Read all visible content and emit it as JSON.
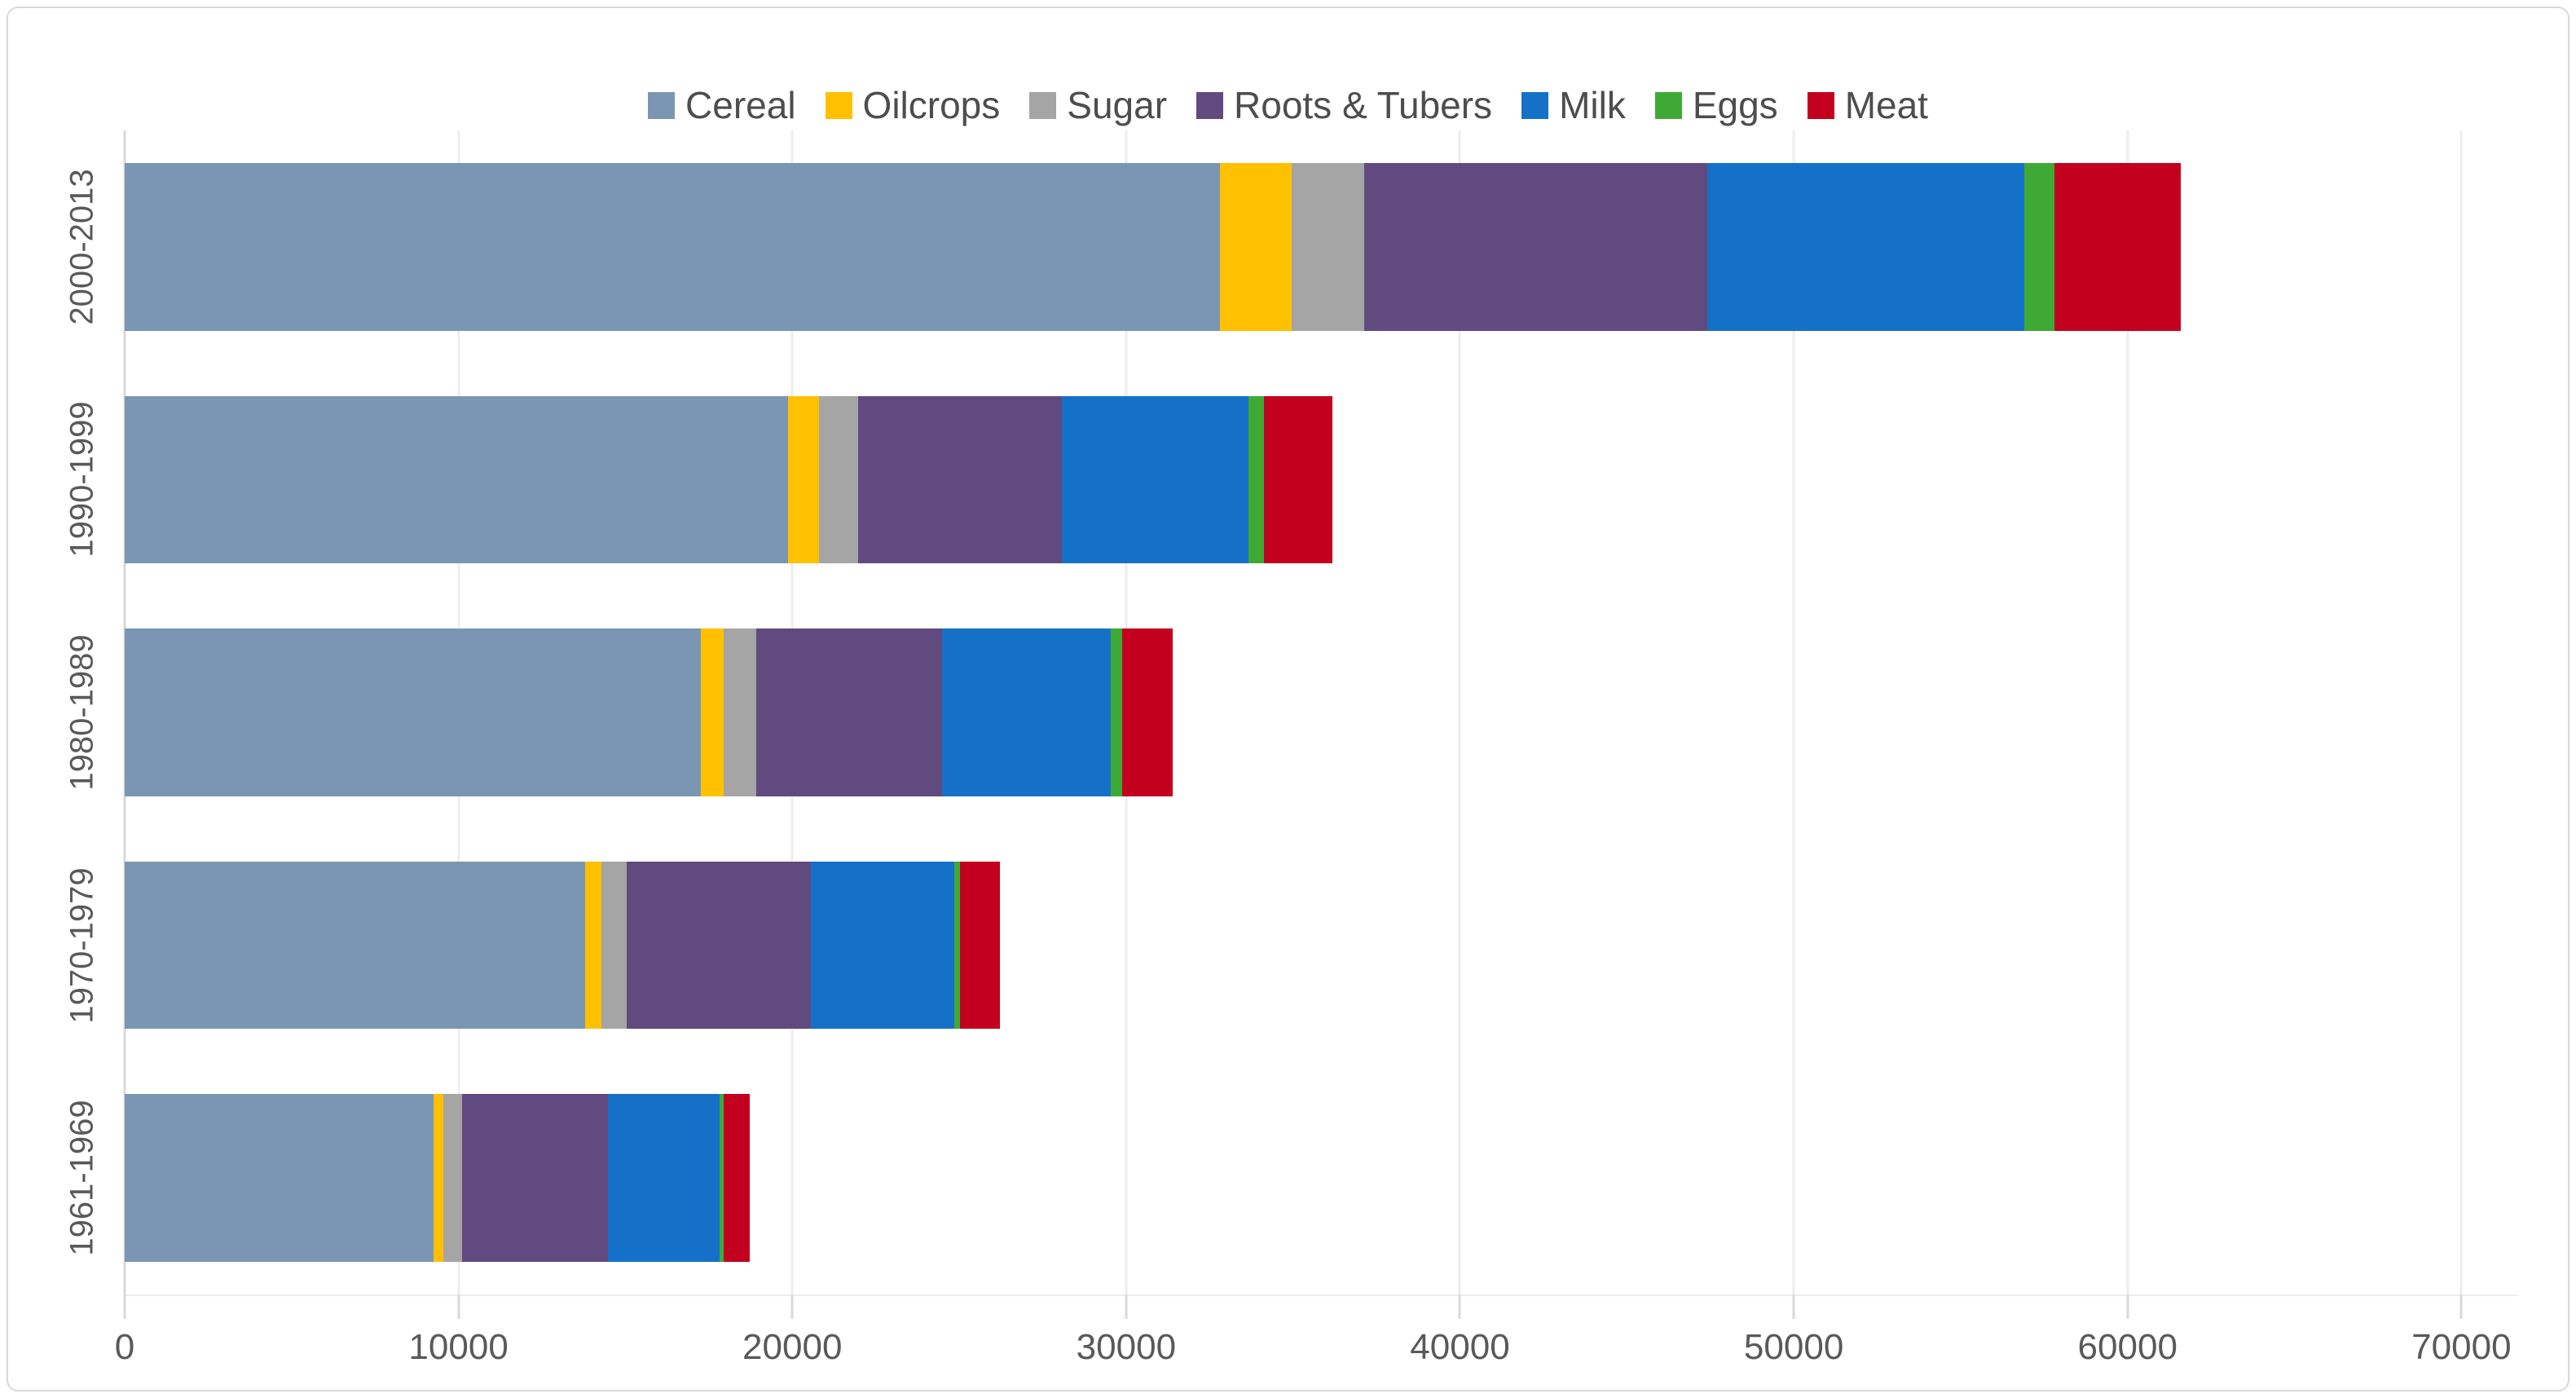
{
  "chart_data": {
    "type": "bar",
    "subtype": "horizontal-stacked",
    "title": "",
    "xlabel": "",
    "ylabel": "",
    "categories": [
      "2000-2013",
      "1990-1999",
      "1980-1989",
      "1970-1979",
      "1961-1969"
    ],
    "series": [
      {
        "name": "Cereal",
        "color": "#7A96B3",
        "values": [
          32800,
          19870,
          17270,
          13790,
          9250
        ]
      },
      {
        "name": "Oilcrops",
        "color": "#FFC000",
        "values": [
          2150,
          940,
          670,
          490,
          300
        ]
      },
      {
        "name": "Sugar",
        "color": "#A5A5A5",
        "values": [
          2180,
          1160,
          970,
          770,
          550
        ]
      },
      {
        "name": "Roots & Tubers",
        "color": "#614A7F",
        "values": [
          10280,
          6110,
          5570,
          5510,
          4370
        ]
      },
      {
        "name": "Milk",
        "color": "#1571C8",
        "values": [
          9500,
          5580,
          5060,
          4290,
          3340
        ]
      },
      {
        "name": "Eggs",
        "color": "#3EAA35",
        "values": [
          900,
          460,
          330,
          170,
          130
        ]
      },
      {
        "name": "Meat",
        "color": "#C4001F",
        "values": [
          3790,
          2060,
          1520,
          1200,
          790
        ]
      }
    ],
    "stack_totals": [
      61600,
      36180,
      31390,
      26220,
      18730
    ],
    "x_ticks": [
      0,
      10000,
      20000,
      30000,
      40000,
      50000,
      60000,
      70000
    ],
    "xlim": [
      0,
      71700
    ],
    "grid": true,
    "legend_position": "top-center"
  },
  "colors": {
    "background": "#ffffff",
    "frame_border": "#d8d8d8",
    "gridline": "#ededed",
    "axis_line": "#d9d9d9",
    "tick": "#d9d9d9",
    "axis_text": "#595959",
    "legend_text": "#4d4d4d"
  }
}
